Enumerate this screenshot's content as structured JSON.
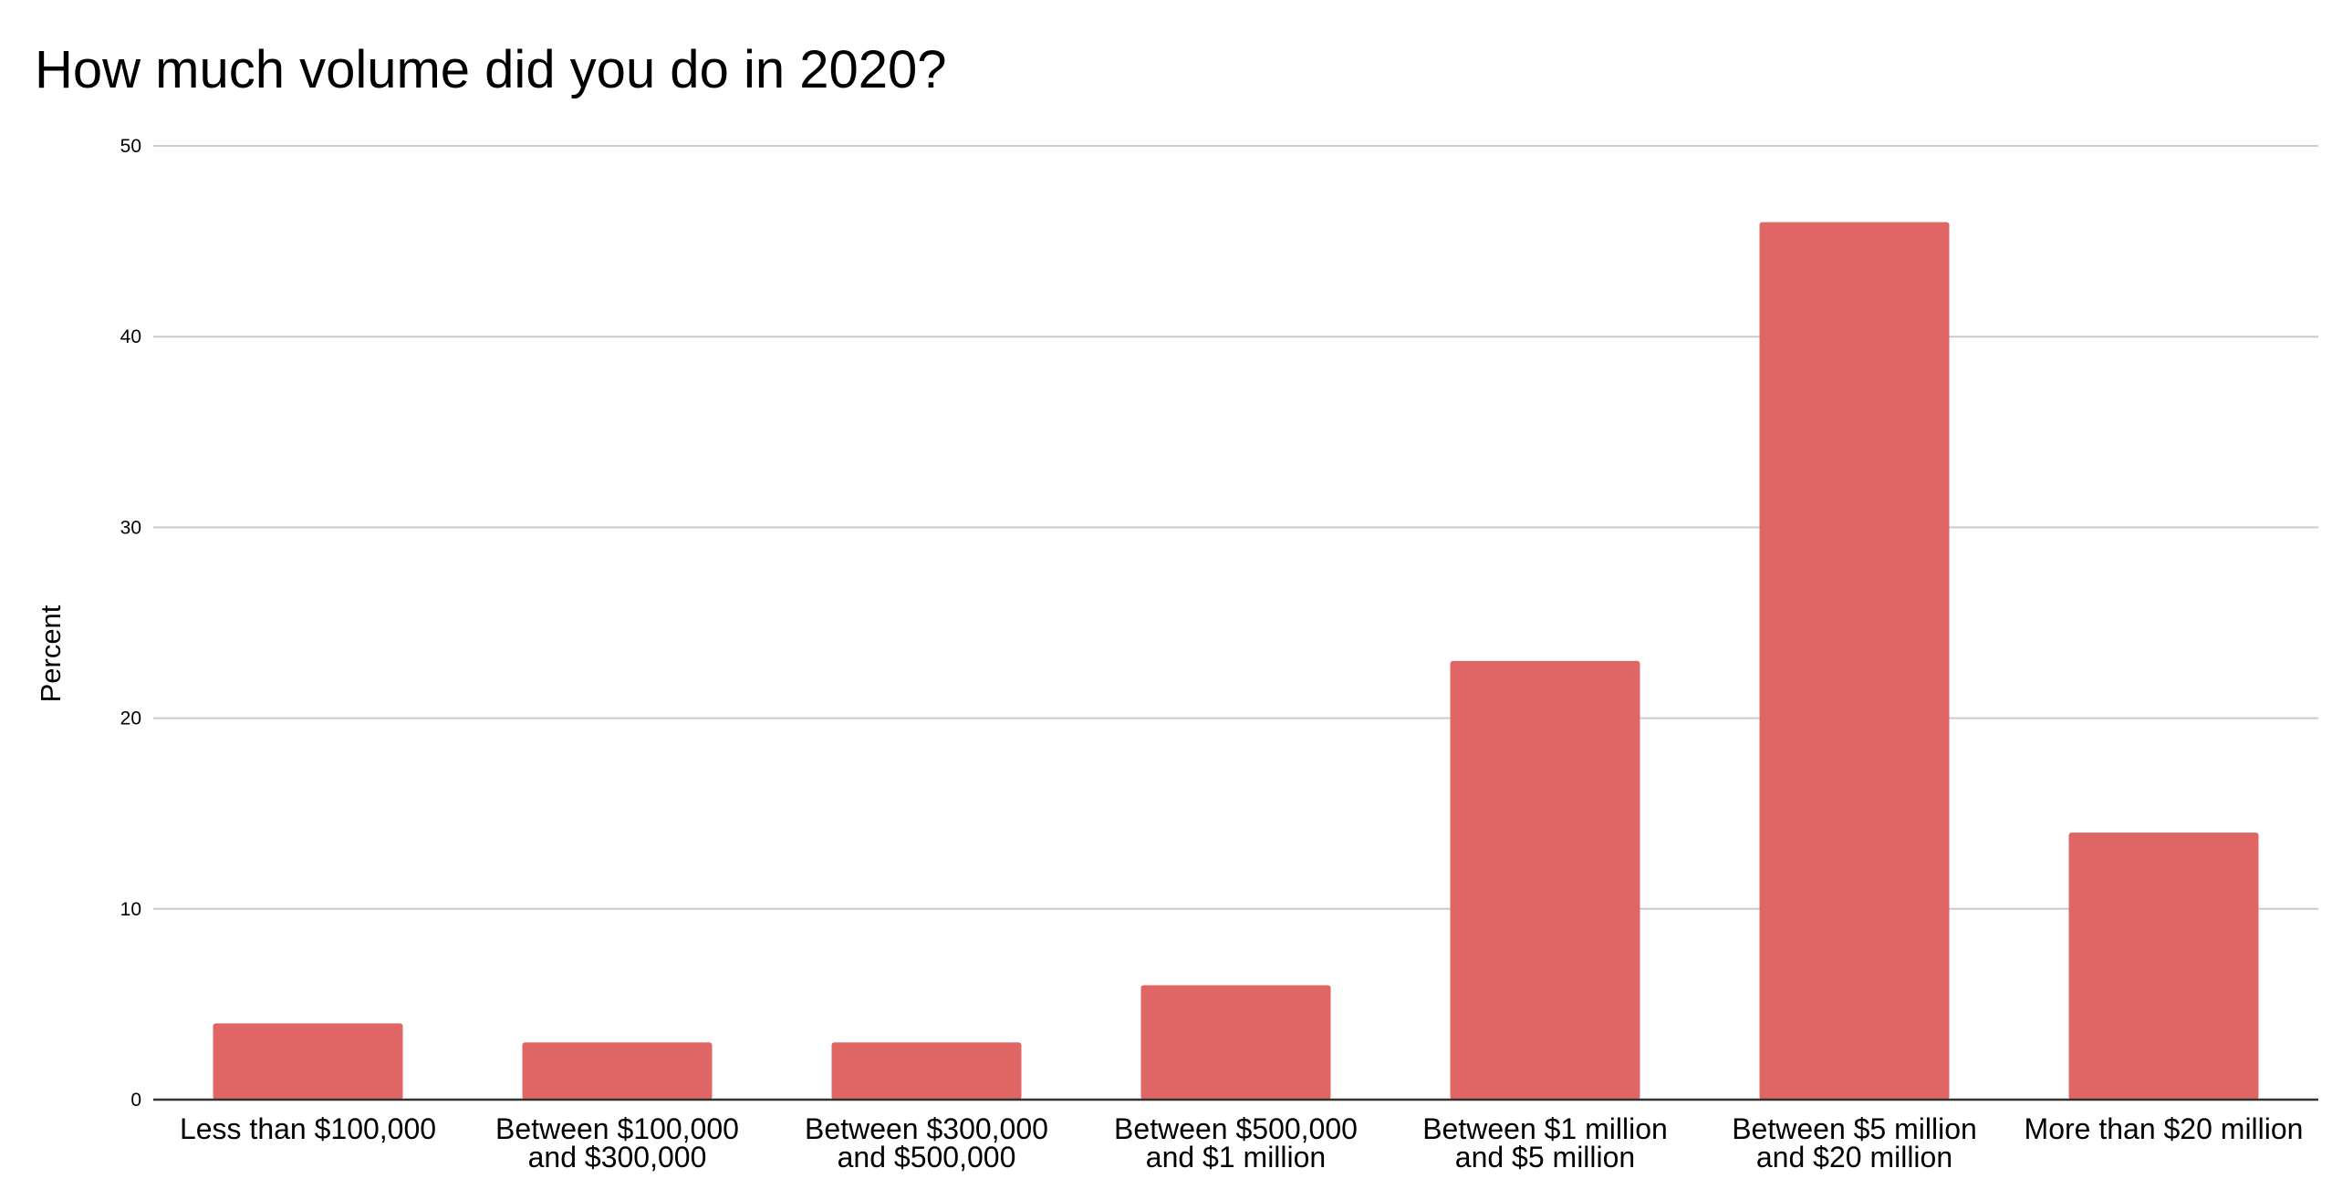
{
  "chart_data": {
    "type": "bar",
    "title": "How much volume did you do in 2020?",
    "xlabel": "",
    "ylabel": "Percent",
    "ylim": [
      0,
      50
    ],
    "yticks": [
      0,
      10,
      20,
      30,
      40,
      50
    ],
    "grid": true,
    "legend": "none",
    "bar_color": "#e06666",
    "categories": [
      [
        "Less than $100,000"
      ],
      [
        "Between $100,000",
        "and $300,000"
      ],
      [
        "Between $300,000",
        "and $500,000"
      ],
      [
        "Between $500,000",
        "and $1 million"
      ],
      [
        "Between $1 million",
        "and $5 million"
      ],
      [
        "Between $5 million",
        "and $20 million"
      ],
      [
        "More than $20 million"
      ]
    ],
    "values": [
      4,
      3,
      3,
      6,
      23,
      46,
      14
    ]
  }
}
